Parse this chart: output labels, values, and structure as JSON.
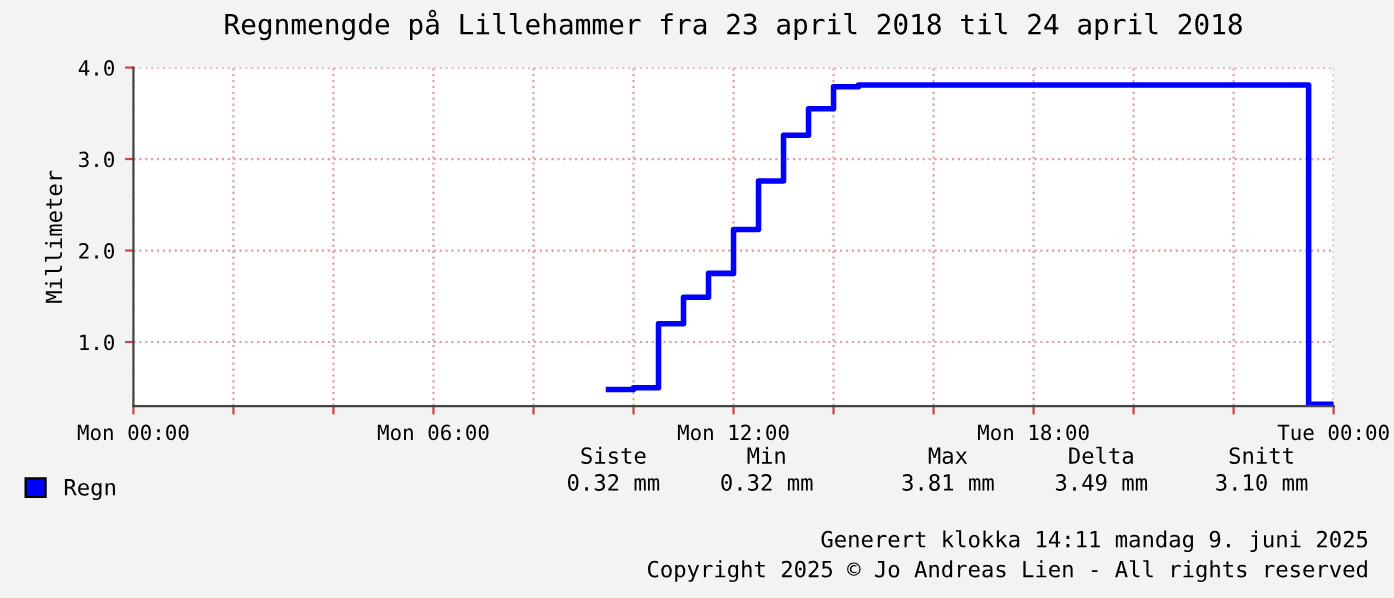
{
  "chart_data": {
    "type": "step",
    "title": "Regnmengde på Lillehammer fra 23 april 2018 til 24 april 2018",
    "ylabel": "Millimeter",
    "x": [
      "2018-04-23T09:30",
      "2018-04-23T10:00",
      "2018-04-23T10:30",
      "2018-04-23T11:00",
      "2018-04-23T11:30",
      "2018-04-23T12:00",
      "2018-04-23T12:30",
      "2018-04-23T13:00",
      "2018-04-23T13:30",
      "2018-04-23T14:00",
      "2018-04-23T14:30",
      "2018-04-23T23:30",
      "2018-04-24T00:00"
    ],
    "series": [
      {
        "name": "Regn",
        "color": "#0000ff",
        "values": [
          0.48,
          0.5,
          1.2,
          1.49,
          1.75,
          2.23,
          2.76,
          3.26,
          3.55,
          3.79,
          3.81,
          0.32,
          0.32
        ]
      }
    ],
    "xlim": [
      "2018-04-23T00:00",
      "2018-04-24T00:00"
    ],
    "ylim": [
      0.3,
      4.0
    ],
    "xticks": [
      {
        "value": "2018-04-23T00:00",
        "label": "Mon 00:00"
      },
      {
        "value": "2018-04-23T02:00",
        "label": null
      },
      {
        "value": "2018-04-23T04:00",
        "label": null
      },
      {
        "value": "2018-04-23T06:00",
        "label": "Mon 06:00"
      },
      {
        "value": "2018-04-23T08:00",
        "label": null
      },
      {
        "value": "2018-04-23T10:00",
        "label": null
      },
      {
        "value": "2018-04-23T12:00",
        "label": "Mon 12:00"
      },
      {
        "value": "2018-04-23T14:00",
        "label": null
      },
      {
        "value": "2018-04-23T16:00",
        "label": null
      },
      {
        "value": "2018-04-23T18:00",
        "label": "Mon 18:00"
      },
      {
        "value": "2018-04-23T20:00",
        "label": null
      },
      {
        "value": "2018-04-23T22:00",
        "label": null
      },
      {
        "value": "2018-04-24T00:00",
        "label": "Tue 00:00"
      }
    ],
    "yticks": [
      {
        "value": 1,
        "label": "1.0"
      },
      {
        "value": 2,
        "label": "2.0"
      },
      {
        "value": 3,
        "label": "3.0"
      },
      {
        "value": 4,
        "label": "4.0"
      }
    ],
    "grid": true,
    "legend": "bottom left",
    "annotations": [
      "Siste",
      "Min",
      "Max",
      "Delta",
      "Snitt",
      "0.32 mm",
      "0.32 mm",
      "3.81 mm",
      "3.49 mm",
      "3.10 mm",
      "Generert klokka 14:11 mandag 9. juni 2025",
      "Copyright 2025 © Jo Andreas Lien - All rights reserved"
    ]
  }
}
